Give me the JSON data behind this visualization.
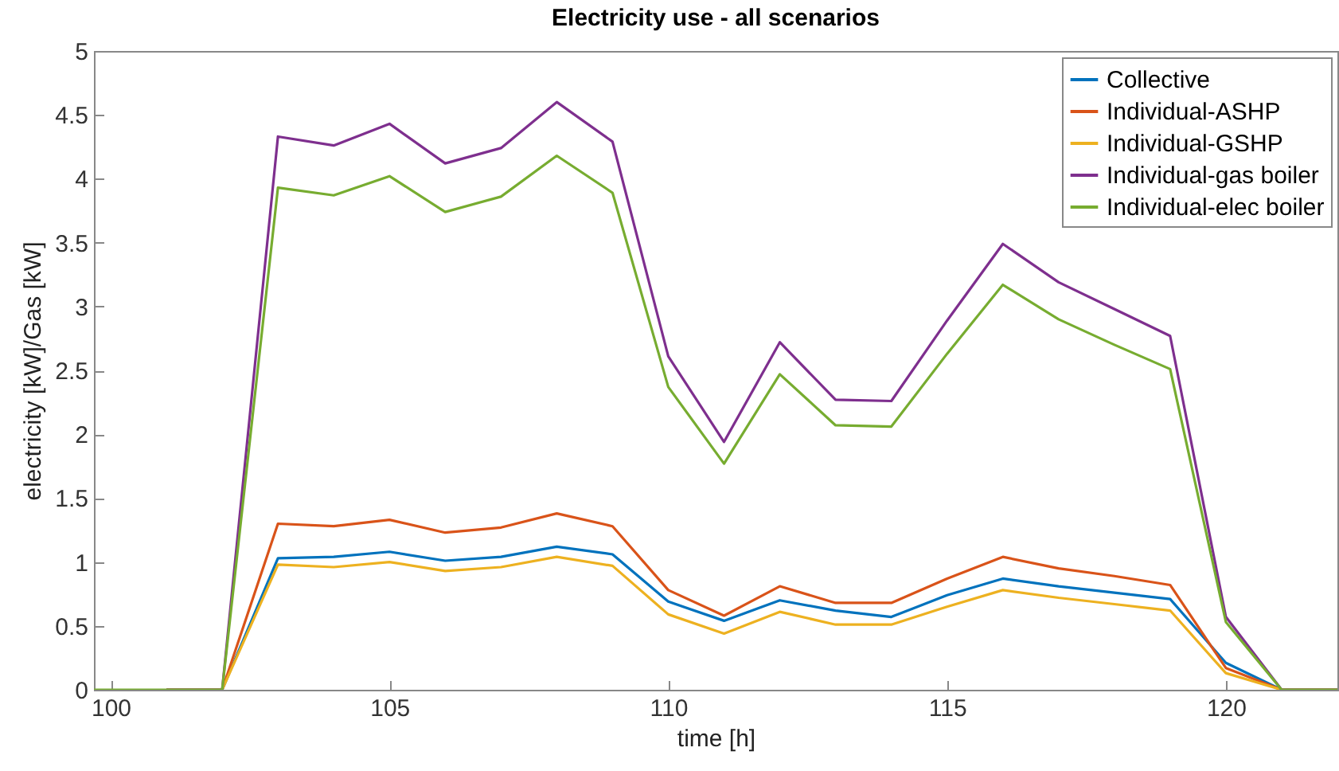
{
  "chart_data": {
    "type": "line",
    "title": "Electricity use - all scenarios",
    "xlabel": "time [h]",
    "ylabel": "electricity [kW]/Gas [kW]",
    "x": [
      99.7,
      100,
      101,
      102,
      103,
      104,
      105,
      106,
      107,
      108,
      109,
      110,
      111,
      112,
      113,
      114,
      115,
      116,
      117,
      118,
      119,
      120,
      121,
      122
    ],
    "series": [
      {
        "name": "Collective",
        "color": "#0072bd",
        "values": [
          null,
          null,
          0,
          0,
          1.03,
          1.04,
          1.08,
          1.01,
          1.04,
          1.12,
          1.06,
          0.69,
          0.54,
          0.7,
          0.62,
          0.57,
          0.74,
          0.87,
          0.81,
          0.76,
          0.71,
          0.21,
          0,
          0
        ]
      },
      {
        "name": "Individual-ASHP",
        "color": "#d95319",
        "values": [
          null,
          null,
          0,
          0,
          1.3,
          1.28,
          1.33,
          1.23,
          1.27,
          1.38,
          1.28,
          0.78,
          0.58,
          0.81,
          0.68,
          0.68,
          0.87,
          1.04,
          0.95,
          0.89,
          0.82,
          0.17,
          0,
          0
        ]
      },
      {
        "name": "Individual-GSHP",
        "color": "#edb120",
        "values": [
          null,
          null,
          0,
          0,
          0.98,
          0.96,
          1,
          0.93,
          0.96,
          1.04,
          0.97,
          0.59,
          0.44,
          0.61,
          0.51,
          0.51,
          0.65,
          0.78,
          0.72,
          0.67,
          0.62,
          0.13,
          0,
          0
        ]
      },
      {
        "name": "Individual-gas boiler",
        "color": "#7e2f8e",
        "values": [
          null,
          null,
          0,
          0,
          4.33,
          4.26,
          4.43,
          4.12,
          4.24,
          4.6,
          4.29,
          2.61,
          1.94,
          2.72,
          2.27,
          2.26,
          2.89,
          3.49,
          3.19,
          2.98,
          2.77,
          0.57,
          0,
          0
        ]
      },
      {
        "name": "Individual-elec boiler",
        "color": "#77ac30",
        "values": [
          0,
          0,
          0,
          0,
          3.93,
          3.87,
          4.02,
          3.74,
          3.86,
          4.18,
          3.89,
          2.37,
          1.77,
          2.47,
          2.07,
          2.06,
          2.63,
          3.17,
          2.9,
          2.7,
          2.51,
          0.53,
          0,
          0
        ]
      }
    ],
    "xlim": [
      99.7,
      122
    ],
    "xticks": [
      100,
      105,
      110,
      115,
      120
    ],
    "ylim": [
      0,
      5
    ],
    "yticks": [
      0,
      0.5,
      1,
      1.5,
      2,
      2.5,
      3,
      3.5,
      4,
      4.5,
      5
    ],
    "grid": false,
    "legend": "top right",
    "marker": "none",
    "line_style": "solid"
  }
}
